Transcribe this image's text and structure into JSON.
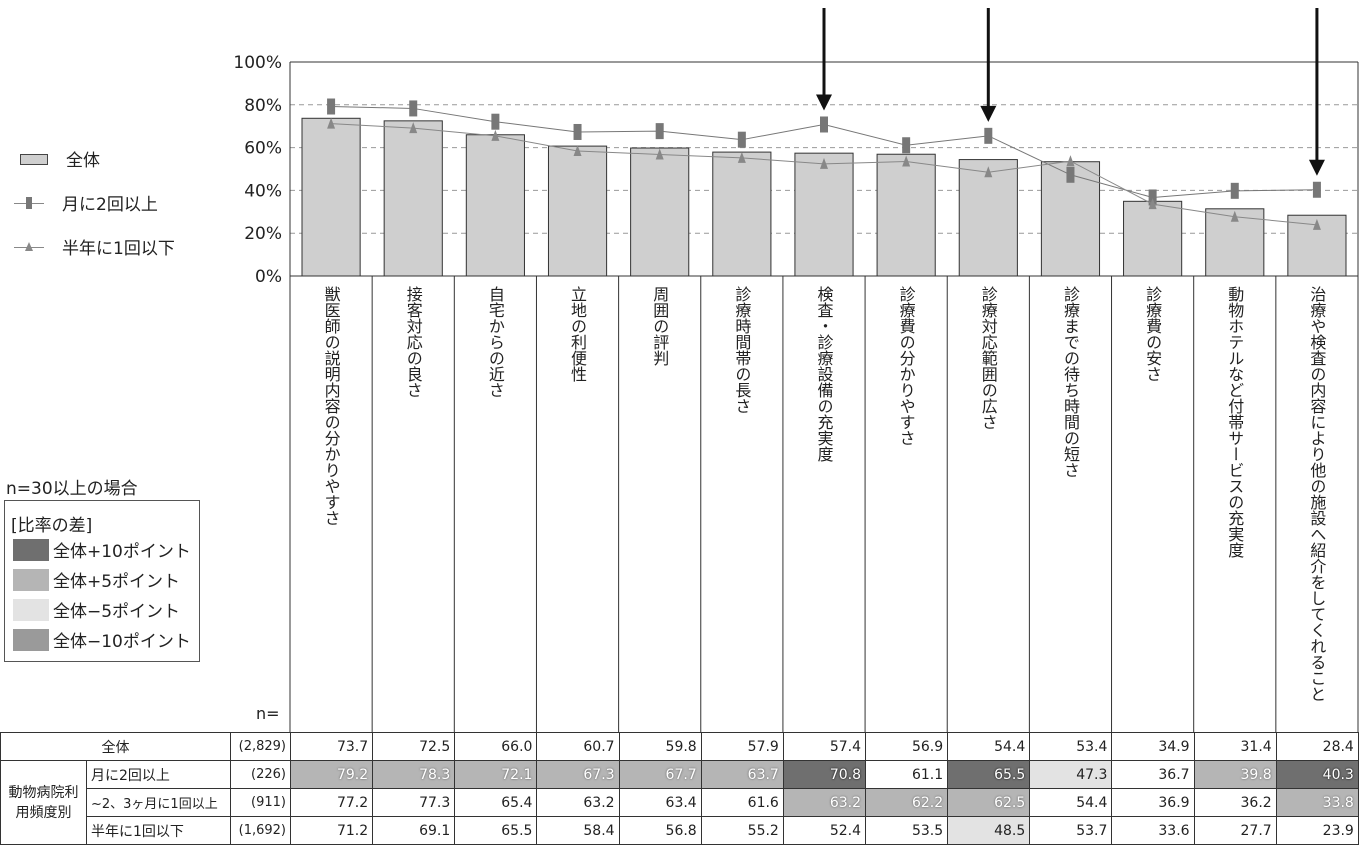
{
  "chart_data": {
    "type": "bar",
    "ylim": [
      0,
      100
    ],
    "yticks": [
      "100%",
      "80%",
      "60%",
      "40%",
      "20%",
      "0%"
    ],
    "categories": [
      "獣医師の説明内容の分かりやすさ",
      "接客対応の良さ",
      "自宅からの近さ",
      "立地の利便性",
      "周囲の評判",
      "診療時間帯の長さ",
      "検査・診療設備の充実度",
      "診療費の分かりやすさ",
      "診療対応範囲の広さ",
      "診療までの待ち時間の短さ",
      "診療費の安さ",
      "動物ホテルなど付帯サービスの充実度",
      "治療や検査の内容により他の施設へ紹介をしてくれること"
    ],
    "series": [
      {
        "name": "全体",
        "style": "bar",
        "color": "#cfcfcf",
        "values": [
          73.7,
          72.5,
          66.0,
          60.7,
          59.8,
          57.9,
          57.4,
          56.9,
          54.4,
          53.4,
          34.9,
          31.4,
          28.4
        ]
      },
      {
        "name": "月に2回以上",
        "style": "line-rect",
        "color": "#777777",
        "values": [
          79.2,
          78.3,
          72.1,
          67.3,
          67.7,
          63.7,
          70.8,
          61.1,
          65.5,
          47.3,
          36.7,
          39.8,
          40.3
        ]
      },
      {
        "name": "半年に1回以下",
        "style": "line-triangle",
        "color": "#888888",
        "values": [
          71.2,
          69.1,
          65.5,
          58.4,
          56.8,
          55.2,
          52.4,
          53.5,
          48.5,
          53.7,
          33.6,
          27.7,
          23.9
        ]
      }
    ],
    "arrows_at_categories": [
      6,
      8,
      12
    ],
    "grid": true,
    "legend_placement": "left"
  },
  "legend": {
    "items": [
      "全体",
      "月に2回以上",
      "半年に1回以下"
    ]
  },
  "note": "n=30以上の場合",
  "diff_legend": {
    "title": "[比率の差]",
    "items": [
      {
        "label": "全体+10ポイント",
        "color": "#6f6f6f"
      },
      {
        "label": "全体+5ポイント",
        "color": "#b5b5b5"
      },
      {
        "label": "全体−5ポイント",
        "color": "#e3e3e3"
      },
      {
        "label": "全体−10ポイント",
        "color": "#9a9a9a"
      }
    ]
  },
  "n_label": "n=",
  "table": {
    "group_label": "動物病院利用頻度別",
    "rows": [
      {
        "label": "全体",
        "n": "(2,829)",
        "values": [
          "73.7",
          "72.5",
          "66.0",
          "60.7",
          "59.8",
          "57.9",
          "57.4",
          "56.9",
          "54.4",
          "53.4",
          "34.9",
          "31.4",
          "28.4"
        ],
        "marks": [
          "",
          "",
          "",
          "",
          "",
          "",
          "",
          "",
          "",
          "",
          "",
          "",
          ""
        ]
      },
      {
        "label": "月に2回以上",
        "n": "(226)",
        "values": [
          "79.2",
          "78.3",
          "72.1",
          "67.3",
          "67.7",
          "63.7",
          "70.8",
          "61.1",
          "65.5",
          "47.3",
          "36.7",
          "39.8",
          "40.3"
        ],
        "marks": [
          "p5",
          "p5",
          "p5",
          "p5",
          "p5",
          "p5",
          "p10",
          "",
          "p10",
          "m5",
          "",
          "p5",
          "p10"
        ]
      },
      {
        "label": "~2、3ヶ月に1回以上",
        "n": "(911)",
        "values": [
          "77.2",
          "77.3",
          "65.4",
          "63.2",
          "63.4",
          "61.6",
          "63.2",
          "62.2",
          "62.5",
          "54.4",
          "36.9",
          "36.2",
          "33.8"
        ],
        "marks": [
          "",
          "",
          "",
          "",
          "",
          "",
          "p5",
          "p5",
          "p5",
          "",
          "",
          "",
          "p5"
        ]
      },
      {
        "label": "半年に1回以下",
        "n": "(1,692)",
        "values": [
          "71.2",
          "69.1",
          "65.5",
          "58.4",
          "56.8",
          "55.2",
          "52.4",
          "53.5",
          "48.5",
          "53.7",
          "33.6",
          "27.7",
          "23.9"
        ],
        "marks": [
          "",
          "",
          "",
          "",
          "",
          "",
          "",
          "",
          "m5",
          "",
          "",
          "",
          ""
        ]
      }
    ]
  }
}
